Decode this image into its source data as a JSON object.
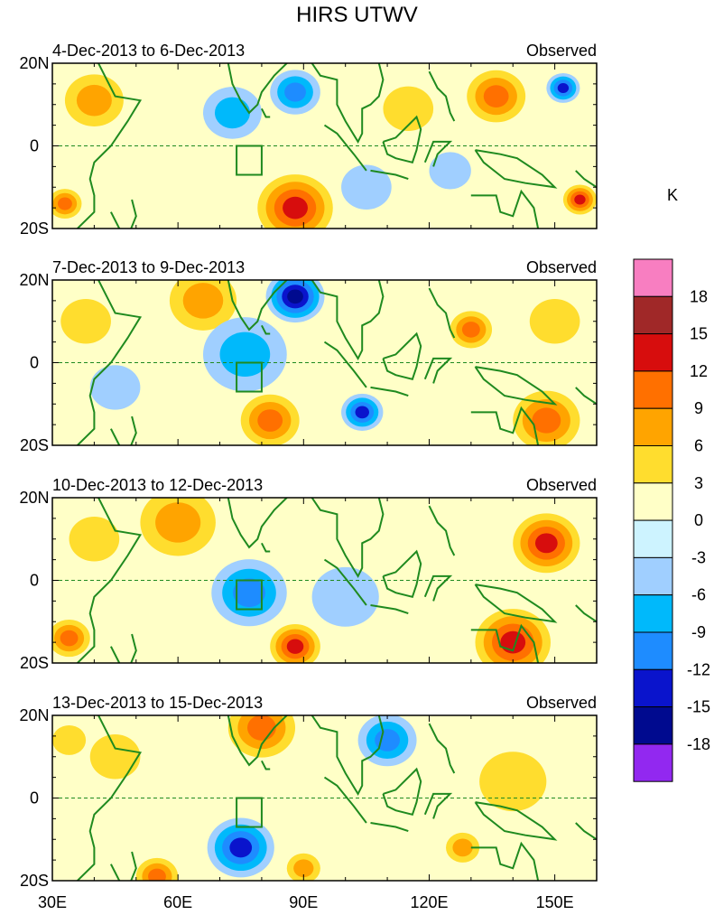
{
  "chart_data": {
    "type": "heatmap",
    "title": "HIRS UTWV",
    "units_label": "K",
    "x_ticks": [
      "30E",
      "60E",
      "90E",
      "120E",
      "150E"
    ],
    "x_tick_values": [
      30,
      60,
      90,
      120,
      150
    ],
    "xlim": [
      30,
      160
    ],
    "y_ticks": [
      "20N",
      "0",
      "20S"
    ],
    "y_tick_values": [
      20,
      0,
      -20
    ],
    "ylim": [
      -20,
      20
    ],
    "panels": [
      {
        "period": "4-Dec-2013 to 6-Dec-2013",
        "label": "Observed"
      },
      {
        "period": "7-Dec-2013 to 9-Dec-2013",
        "label": "Observed"
      },
      {
        "period": "10-Dec-2013 to 12-Dec-2013",
        "label": "Observed"
      },
      {
        "period": "13-Dec-2013 to 15-Dec-2013",
        "label": "Observed"
      }
    ],
    "colorbar": {
      "levels": [
        "18",
        "15",
        "12",
        "9",
        "6",
        "3",
        "0",
        "-3",
        "-6",
        "-9",
        "-12",
        "-15",
        "-18"
      ],
      "colors": [
        "#f87ec1",
        "#a02828",
        "#d70d0d",
        "#ff7000",
        "#ffa400",
        "#ffdd2e",
        "#ffffc7",
        "#cdf3ff",
        "#a0cfff",
        "#00b9fb",
        "#1e8cff",
        "#0a14cc",
        "#000a8f",
        "#9228f0"
      ]
    },
    "features": {
      "equator_line": "dashed",
      "box_region": {
        "lon": [
          74,
          80
        ],
        "lat": [
          -7,
          0
        ]
      }
    },
    "anomalies": [
      [
        {
          "lon": 88,
          "lat": 13,
          "v": -10,
          "r": 6
        },
        {
          "lon": 73,
          "lat": 8,
          "v": -7,
          "r": 7
        },
        {
          "lon": 152,
          "lat": 14,
          "v": -12,
          "r": 4
        },
        {
          "lon": 136,
          "lat": 12,
          "v": 9,
          "r": 7
        },
        {
          "lon": 40,
          "lat": 11,
          "v": 6,
          "r": 7
        },
        {
          "lon": 88,
          "lat": -15,
          "v": 14,
          "r": 9
        },
        {
          "lon": 33,
          "lat": -14,
          "v": 9,
          "r": 4
        },
        {
          "lon": 156,
          "lat": -13,
          "v": 12,
          "r": 4
        },
        {
          "lon": 105,
          "lat": -10,
          "v": -5,
          "r": 6
        },
        {
          "lon": 115,
          "lat": 9,
          "v": 4,
          "r": 6
        },
        {
          "lon": 125,
          "lat": -6,
          "v": -4,
          "r": 5
        }
      ],
      [
        {
          "lon": 88,
          "lat": 16,
          "v": -16,
          "r": 7
        },
        {
          "lon": 66,
          "lat": 15,
          "v": 7,
          "r": 8
        },
        {
          "lon": 76,
          "lat": 2,
          "v": -6,
          "r": 10
        },
        {
          "lon": 82,
          "lat": -14,
          "v": 11,
          "r": 7
        },
        {
          "lon": 104,
          "lat": -12,
          "v": -13,
          "r": 5
        },
        {
          "lon": 148,
          "lat": -14,
          "v": 9,
          "r": 8
        },
        {
          "lon": 130,
          "lat": 8,
          "v": 9,
          "r": 5
        },
        {
          "lon": 150,
          "lat": 10,
          "v": 5,
          "r": 6
        },
        {
          "lon": 38,
          "lat": 10,
          "v": 4,
          "r": 6
        },
        {
          "lon": 45,
          "lat": -6,
          "v": -5,
          "r": 6
        }
      ],
      [
        {
          "lon": 60,
          "lat": 14,
          "v": 8,
          "r": 9
        },
        {
          "lon": 77,
          "lat": -3,
          "v": -10,
          "r": 9
        },
        {
          "lon": 148,
          "lat": 9,
          "v": 12,
          "r": 8
        },
        {
          "lon": 140,
          "lat": -15,
          "v": 12,
          "r": 9
        },
        {
          "lon": 34,
          "lat": -14,
          "v": 10,
          "r": 5
        },
        {
          "lon": 88,
          "lat": -16,
          "v": 12,
          "r": 6
        },
        {
          "lon": 100,
          "lat": -4,
          "v": -4,
          "r": 8
        },
        {
          "lon": 40,
          "lat": 10,
          "v": 5,
          "r": 6
        }
      ],
      [
        {
          "lon": 80,
          "lat": 17,
          "v": 9,
          "r": 8
        },
        {
          "lon": 110,
          "lat": 14,
          "v": -9,
          "r": 7
        },
        {
          "lon": 75,
          "lat": -12,
          "v": -12,
          "r": 8
        },
        {
          "lon": 55,
          "lat": -19,
          "v": 11,
          "r": 5
        },
        {
          "lon": 90,
          "lat": -17,
          "v": 8,
          "r": 4
        },
        {
          "lon": 128,
          "lat": -12,
          "v": 7,
          "r": 4
        },
        {
          "lon": 45,
          "lat": 10,
          "v": 5,
          "r": 6
        },
        {
          "lon": 140,
          "lat": 4,
          "v": 3,
          "r": 8
        },
        {
          "lon": 34,
          "lat": 14,
          "v": 4,
          "r": 4
        }
      ]
    ]
  }
}
